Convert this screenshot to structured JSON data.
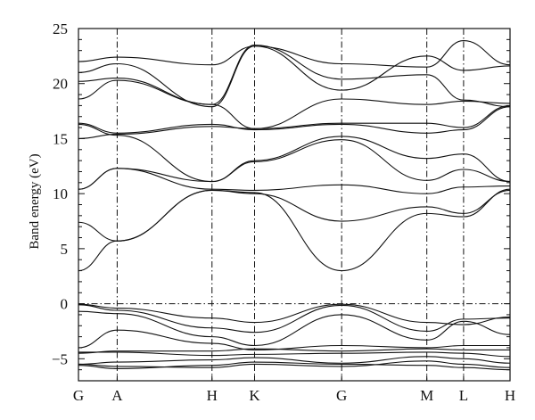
{
  "chart_data": {
    "type": "line",
    "title": "",
    "xlabel": "",
    "ylabel": "Band energy (eV)",
    "ylim": [
      -7,
      25
    ],
    "y_ticks": [
      25,
      20,
      15,
      10,
      5,
      0,
      -5
    ],
    "y_minor_step": 1,
    "k_points": [
      {
        "label": "G",
        "pos": 0
      },
      {
        "label": "A",
        "pos": 1
      },
      {
        "label": "H",
        "pos": 3.45
      },
      {
        "label": "K",
        "pos": 4.55
      },
      {
        "label": "G",
        "pos": 6.8
      },
      {
        "label": "M",
        "pos": 9.0
      },
      {
        "label": "L",
        "pos": 9.95
      },
      {
        "label": "H",
        "pos": 11.15
      }
    ],
    "fermi_level": 0,
    "grid": false,
    "line_color": "#111111",
    "bands": [
      {
        "points": [
          [
            0,
            -5.5
          ],
          [
            1,
            -5.7
          ],
          [
            3.45,
            -5.8
          ],
          [
            4.55,
            -5.5
          ],
          [
            6.8,
            -5.7
          ],
          [
            9.0,
            -5.2
          ],
          [
            9.95,
            -5.5
          ],
          [
            11.15,
            -5.8
          ]
        ]
      },
      {
        "points": [
          [
            0,
            -5.6
          ],
          [
            1,
            -5.9
          ],
          [
            3.45,
            -5.6
          ],
          [
            4.55,
            -5.3
          ],
          [
            6.8,
            -5.5
          ],
          [
            9.0,
            -5.6
          ],
          [
            9.95,
            -5.8
          ],
          [
            11.15,
            -6.0
          ]
        ]
      },
      {
        "points": [
          [
            0,
            -5.5
          ],
          [
            1,
            -5.3
          ],
          [
            3.45,
            -5.1
          ],
          [
            4.55,
            -4.9
          ],
          [
            6.8,
            -5.4
          ],
          [
            9.0,
            -4.8
          ],
          [
            9.95,
            -5.0
          ],
          [
            11.15,
            -5.4
          ]
        ]
      },
      {
        "points": [
          [
            0,
            -4.4
          ],
          [
            1,
            -4.4
          ],
          [
            3.45,
            -4.7
          ],
          [
            4.55,
            -4.6
          ],
          [
            6.8,
            -4.5
          ],
          [
            9.0,
            -4.4
          ],
          [
            9.95,
            -4.5
          ],
          [
            11.15,
            -4.8
          ]
        ]
      },
      {
        "points": [
          [
            0,
            -4.5
          ],
          [
            1,
            -4.3
          ],
          [
            3.45,
            -4.3
          ],
          [
            4.55,
            -4.1
          ],
          [
            6.8,
            -4.3
          ],
          [
            9.0,
            -4.1
          ],
          [
            9.95,
            -4.2
          ],
          [
            11.15,
            -4.2
          ]
        ]
      },
      {
        "points": [
          [
            0,
            -4.0
          ],
          [
            1,
            -2.4
          ],
          [
            3.45,
            -3.6
          ],
          [
            4.55,
            -4.2
          ],
          [
            6.8,
            -3.8
          ],
          [
            9.0,
            -4.0
          ],
          [
            9.95,
            -3.8
          ],
          [
            11.15,
            -3.8
          ]
        ]
      },
      {
        "points": [
          [
            0,
            -0.7
          ],
          [
            1,
            -0.9
          ],
          [
            3.45,
            -3.0
          ],
          [
            4.55,
            -3.8
          ],
          [
            6.8,
            -1.0
          ],
          [
            9.0,
            -3.3
          ],
          [
            9.95,
            -1.6
          ],
          [
            11.15,
            -2.8
          ]
        ]
      },
      {
        "points": [
          [
            0,
            -0.1
          ],
          [
            1,
            -0.6
          ],
          [
            3.45,
            -2.2
          ],
          [
            4.55,
            -2.6
          ],
          [
            6.8,
            -0.15
          ],
          [
            9.0,
            -2.5
          ],
          [
            9.95,
            -1.4
          ],
          [
            11.15,
            -1.3
          ]
        ]
      },
      {
        "points": [
          [
            0,
            -0.05
          ],
          [
            1,
            -0.4
          ],
          [
            3.45,
            -1.3
          ],
          [
            4.55,
            -1.7
          ],
          [
            6.8,
            -0.05
          ],
          [
            9.0,
            -1.7
          ],
          [
            9.95,
            -1.9
          ],
          [
            11.15,
            -1.2
          ]
        ]
      },
      {
        "points": [
          [
            0,
            3.0
          ],
          [
            1,
            5.7
          ],
          [
            3.45,
            10.3
          ],
          [
            4.55,
            10.1
          ],
          [
            6.8,
            3.0
          ],
          [
            9.0,
            8.2
          ],
          [
            9.95,
            7.9
          ],
          [
            11.15,
            10.4
          ]
        ]
      },
      {
        "points": [
          [
            0,
            7.4
          ],
          [
            1,
            5.7
          ],
          [
            3.45,
            10.3
          ],
          [
            4.55,
            10.0
          ],
          [
            6.8,
            7.5
          ],
          [
            9.0,
            8.8
          ],
          [
            9.95,
            8.2
          ],
          [
            11.15,
            10.3
          ]
        ]
      },
      {
        "points": [
          [
            0,
            10.4
          ],
          [
            1,
            12.3
          ],
          [
            3.45,
            10.4
          ],
          [
            4.55,
            10.3
          ],
          [
            6.8,
            10.8
          ],
          [
            9.0,
            10.0
          ],
          [
            9.95,
            10.6
          ],
          [
            11.15,
            10.7
          ]
        ]
      },
      {
        "points": [
          [
            0,
            10.4
          ],
          [
            1,
            12.3
          ],
          [
            3.45,
            11.1
          ],
          [
            4.55,
            12.9
          ],
          [
            6.8,
            14.9
          ],
          [
            9.0,
            11.2
          ],
          [
            9.95,
            12.2
          ],
          [
            11.15,
            11.1
          ]
        ]
      },
      {
        "points": [
          [
            0,
            16.3
          ],
          [
            1,
            15.3
          ],
          [
            3.45,
            11.1
          ],
          [
            4.55,
            13.0
          ],
          [
            6.8,
            15.2
          ],
          [
            9.0,
            13.2
          ],
          [
            9.95,
            13.6
          ],
          [
            11.15,
            11.1
          ]
        ]
      },
      {
        "points": [
          [
            0,
            16.4
          ],
          [
            1,
            15.5
          ],
          [
            3.45,
            16.3
          ],
          [
            4.55,
            15.8
          ],
          [
            6.8,
            16.3
          ],
          [
            9.0,
            15.5
          ],
          [
            9.95,
            15.8
          ],
          [
            11.15,
            17.9
          ]
        ]
      },
      {
        "points": [
          [
            0,
            15.0
          ],
          [
            1,
            15.4
          ],
          [
            3.45,
            16.1
          ],
          [
            4.55,
            15.9
          ],
          [
            6.8,
            16.4
          ],
          [
            9.0,
            16.4
          ],
          [
            9.95,
            16.0
          ],
          [
            11.15,
            18.0
          ]
        ]
      },
      {
        "points": [
          [
            0,
            18.6
          ],
          [
            1,
            20.3
          ],
          [
            3.45,
            18.1
          ],
          [
            4.55,
            15.9
          ],
          [
            6.8,
            18.6
          ],
          [
            9.0,
            18.1
          ],
          [
            9.95,
            18.4
          ],
          [
            11.15,
            18.2
          ]
        ]
      },
      {
        "points": [
          [
            0,
            20.2
          ],
          [
            1,
            20.5
          ],
          [
            3.45,
            18.1
          ],
          [
            4.55,
            23.5
          ],
          [
            6.8,
            20.4
          ],
          [
            9.0,
            20.8
          ],
          [
            9.95,
            18.5
          ],
          [
            11.15,
            17.9
          ]
        ]
      },
      {
        "points": [
          [
            0,
            21.0
          ],
          [
            1,
            21.8
          ],
          [
            3.45,
            17.9
          ],
          [
            4.55,
            23.4
          ],
          [
            6.8,
            19.4
          ],
          [
            9.0,
            22.5
          ],
          [
            9.95,
            21.2
          ],
          [
            11.15,
            21.6
          ]
        ]
      },
      {
        "points": [
          [
            0,
            22.0
          ],
          [
            1,
            22.4
          ],
          [
            3.45,
            21.7
          ],
          [
            4.55,
            23.4
          ],
          [
            6.8,
            21.8
          ],
          [
            9.0,
            21.5
          ],
          [
            9.95,
            23.9
          ],
          [
            11.15,
            21.7
          ]
        ]
      }
    ]
  }
}
